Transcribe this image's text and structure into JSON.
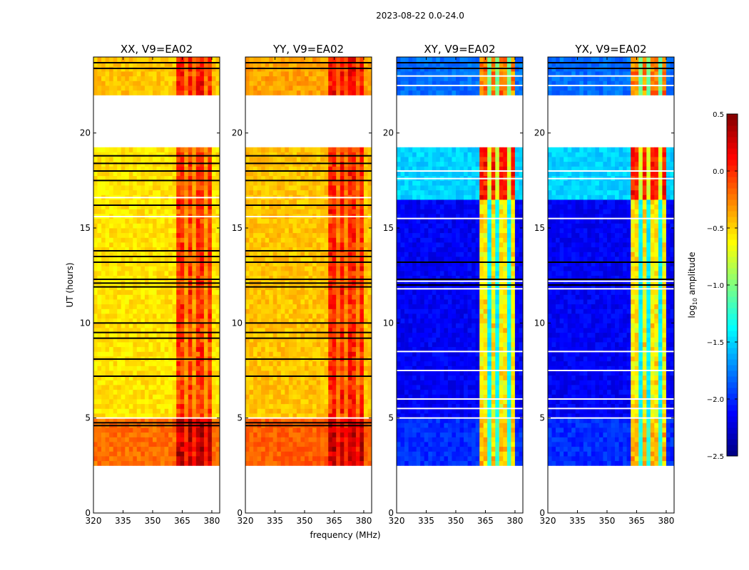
{
  "chart_data": {
    "type": "heatmap",
    "suptitle": "2023-08-22 0.0-24.0",
    "xlabel": "frequency (MHz)",
    "ylabel": "UT (hours)",
    "xlim": [
      320,
      384
    ],
    "ylim": [
      0,
      24
    ],
    "xticks": [
      320,
      335,
      350,
      365,
      380
    ],
    "yticks": [
      0,
      5,
      10,
      15,
      20
    ],
    "data_time_ranges": [
      [
        2.5,
        19.25
      ],
      [
        22,
        24
      ]
    ],
    "rfi_band": [
      362,
      381
    ],
    "rfi_gaps": [
      366.5,
      371.5,
      376.5
    ],
    "panels": [
      {
        "title": "XX, V9=EA02",
        "base": [
          [
            2.5,
            5,
            -0.2
          ],
          [
            5,
            19.25,
            -0.55
          ],
          [
            22,
            24,
            -0.45
          ]
        ],
        "band_boost": 0.45,
        "flagged_times": [
          4.6,
          4.75,
          7.2,
          8.1,
          9.2,
          9.5,
          10.0,
          11.9,
          12.1,
          12.3,
          13.2,
          13.5,
          13.8,
          16.2,
          17.5,
          18.0,
          18.4,
          18.8,
          23.4,
          23.7
        ],
        "gap_times": [
          5.0,
          16.6,
          15.6
        ]
      },
      {
        "title": "YY, V9=EA02",
        "base": [
          [
            2.5,
            5,
            -0.15
          ],
          [
            5,
            19.25,
            -0.45
          ],
          [
            22,
            24,
            -0.35
          ]
        ],
        "band_boost": 0.4,
        "flagged_times": [
          4.6,
          4.75,
          7.2,
          8.1,
          9.2,
          9.5,
          10.0,
          11.9,
          12.1,
          12.3,
          13.2,
          13.5,
          13.8,
          16.2,
          17.5,
          18.0,
          18.4,
          18.8,
          23.4,
          23.7
        ],
        "gap_times": [
          5.0,
          16.6,
          15.6
        ]
      },
      {
        "title": "XY, V9=EA02",
        "base": [
          [
            2.5,
            5,
            -2.0
          ],
          [
            5,
            16.5,
            -2.15
          ],
          [
            16.5,
            19.25,
            -1.5
          ],
          [
            22,
            24,
            -1.8
          ]
        ],
        "band_boost": 1.5,
        "flagged_times": [
          12.0,
          12.3,
          13.2,
          23.4,
          23.7
        ],
        "gap_times": [
          5.0,
          5.5,
          6.0,
          7.5,
          8.5,
          11.8,
          12.2,
          15.5,
          17.6,
          18.0,
          22.5,
          23.0
        ]
      },
      {
        "title": "YX, V9=EA02",
        "base": [
          [
            2.5,
            5,
            -2.0
          ],
          [
            5,
            16.5,
            -2.15
          ],
          [
            16.5,
            19.25,
            -1.5
          ],
          [
            22,
            24,
            -1.8
          ]
        ],
        "band_boost": 1.5,
        "flagged_times": [
          12.0,
          12.3,
          13.2,
          23.4,
          23.7
        ],
        "gap_times": [
          5.0,
          5.5,
          6.0,
          7.5,
          8.5,
          11.8,
          12.2,
          15.5,
          17.6,
          18.0,
          22.5,
          23.0
        ]
      }
    ],
    "colorbar": {
      "label": "log10 amplitude",
      "label_main": "log",
      "label_sub": "10",
      "label_rest": " amplitude",
      "range": [
        -2.5,
        0.5
      ],
      "ticks": [
        "0.5",
        "0.0",
        "−0.5",
        "−1.0",
        "−1.5",
        "−2.0",
        "−2.5"
      ],
      "tick_values": [
        0.5,
        0.0,
        -0.5,
        -1.0,
        -1.5,
        -2.0,
        -2.5
      ],
      "colormap": "jet"
    }
  }
}
